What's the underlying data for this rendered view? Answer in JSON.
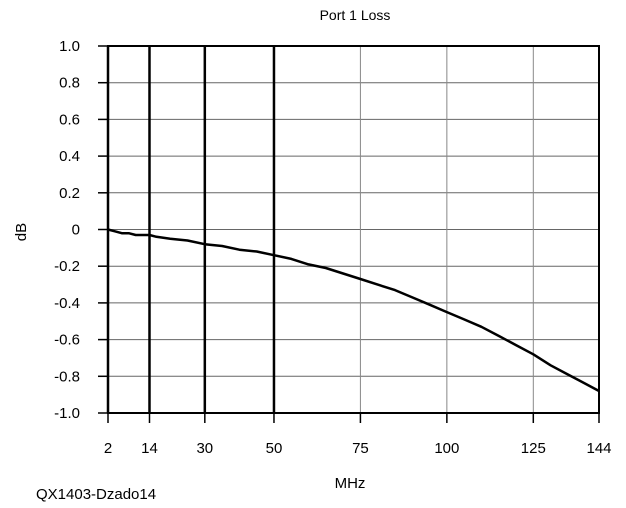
{
  "chart_data": {
    "type": "line",
    "title": "Port 1 Loss",
    "xlabel": "MHz",
    "ylabel": "dB",
    "x_ticks": [
      "2",
      "14",
      "30",
      "50",
      "75",
      "100",
      "125",
      "144"
    ],
    "y_ticks": [
      "1.0",
      "0.8",
      "0.6",
      "0.4",
      "0.2",
      "0",
      "-0.2",
      "-0.4",
      "-0.6",
      "-0.8",
      "-1.0"
    ],
    "xlim": [
      2,
      144
    ],
    "ylim": [
      -1.0,
      1.0
    ],
    "grid": true,
    "emphasized_gridlines_x": [
      2,
      14,
      30,
      50
    ],
    "series": [
      {
        "x": [
          2,
          4,
          6,
          8,
          10,
          12,
          14,
          16,
          20,
          25,
          30,
          35,
          40,
          45,
          50,
          55,
          60,
          65,
          70,
          75,
          80,
          85,
          90,
          95,
          100,
          105,
          110,
          115,
          120,
          125,
          130,
          135,
          140,
          144
        ],
        "y": [
          0.0,
          -0.01,
          -0.02,
          -0.02,
          -0.03,
          -0.03,
          -0.03,
          -0.04,
          -0.05,
          -0.06,
          -0.08,
          -0.09,
          -0.11,
          -0.12,
          -0.14,
          -0.16,
          -0.19,
          -0.21,
          -0.24,
          -0.27,
          -0.3,
          -0.33,
          -0.37,
          -0.41,
          -0.45,
          -0.49,
          -0.53,
          -0.58,
          -0.63,
          -0.68,
          -0.74,
          -0.79,
          -0.84,
          -0.88
        ],
        "color": "#000000"
      }
    ]
  },
  "footer_text": "QX1403-Dzado14"
}
